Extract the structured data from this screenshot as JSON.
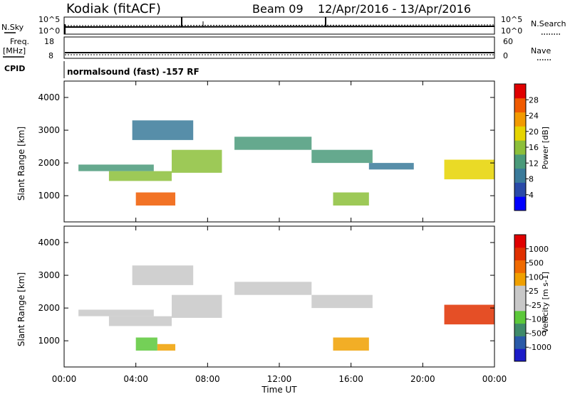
{
  "header": {
    "radar": "Kodiak (fitACF)",
    "beam": "Beam 09",
    "date_range": "12/Apr/2016 - 13/Apr/2016"
  },
  "ancillary": {
    "nsky_label": "N.Sky",
    "nsearch_label": "N.Search",
    "freq_label": "Freq.",
    "freq_unit": "[MHz]",
    "nave_label": "Nave",
    "cpid_label": "CPID",
    "cpid_value": "normalsound (fast) -157 RF",
    "noise_ticks": [
      "10^5",
      "10^0"
    ],
    "noise_ticks_right": [
      "10^5",
      "10^0"
    ],
    "freq_ticks": [
      "18",
      "8"
    ],
    "nave_ticks": [
      "60",
      "0"
    ]
  },
  "colors": {
    "power": [
      "#0000ff",
      "#2a4aa8",
      "#3a7a9a",
      "#4a9a7a",
      "#8cbf3a",
      "#e6d400",
      "#f29a00",
      "#f05a00",
      "#e00000"
    ],
    "velocity": [
      "#1c1cc8",
      "#2a5aa8",
      "#3f8a6a",
      "#5cc83a",
      "#c8c8c8",
      "#c8c8c8",
      "#f0a000",
      "#f06a00",
      "#e03000",
      "#e00000"
    ]
  },
  "chart_data": [
    {
      "type": "heatmap",
      "title": "",
      "xlabel": "Time UT",
      "ylabel": "Slant Range [km]",
      "x_ticks": [
        "00:00",
        "04:00",
        "08:00",
        "12:00",
        "16:00",
        "20:00",
        "00:00"
      ],
      "xlim": [
        0,
        24
      ],
      "y_ticks": [
        "1000",
        "2000",
        "3000",
        "4000"
      ],
      "ylim": [
        200,
        4500
      ],
      "colorbar": {
        "label": "Power [dB]",
        "ticks": [
          "28",
          "24",
          "20",
          "16",
          "12",
          "8",
          "4"
        ]
      },
      "features": [
        {
          "t_start": 0.8,
          "t_end": 5.0,
          "range_start": 1750,
          "range_end": 1950,
          "level": 3
        },
        {
          "t_start": 2.5,
          "t_end": 6.0,
          "range_start": 1450,
          "range_end": 1750,
          "level": 4
        },
        {
          "t_start": 6.0,
          "t_end": 8.8,
          "range_start": 1700,
          "range_end": 2400,
          "level": 4
        },
        {
          "t_start": 3.8,
          "t_end": 7.2,
          "range_start": 2700,
          "range_end": 3300,
          "level": 2
        },
        {
          "t_start": 4.0,
          "t_end": 6.2,
          "range_start": 700,
          "range_end": 1100,
          "level": 7
        },
        {
          "t_start": 9.5,
          "t_end": 13.8,
          "range_start": 2400,
          "range_end": 2800,
          "level": 3
        },
        {
          "t_start": 13.8,
          "t_end": 17.2,
          "range_start": 2000,
          "range_end": 2400,
          "level": 3
        },
        {
          "t_start": 17.0,
          "t_end": 19.5,
          "range_start": 1800,
          "range_end": 2000,
          "level": 2
        },
        {
          "t_start": 15.0,
          "t_end": 17.0,
          "range_start": 700,
          "range_end": 1100,
          "level": 4
        },
        {
          "t_start": 21.2,
          "t_end": 24.0,
          "range_start": 1500,
          "range_end": 2100,
          "level": 5
        }
      ]
    },
    {
      "type": "heatmap",
      "title": "",
      "xlabel": "Time UT",
      "ylabel": "Slant Range [km]",
      "x_ticks": [
        "00:00",
        "04:00",
        "08:00",
        "12:00",
        "16:00",
        "20:00",
        "00:00"
      ],
      "xlim": [
        0,
        24
      ],
      "y_ticks": [
        "1000",
        "2000",
        "3000",
        "4000"
      ],
      "ylim": [
        200,
        4500
      ],
      "colorbar": {
        "label": "Velocity [m s-1]",
        "ticks": [
          "1000",
          "500",
          "100",
          "25",
          "-25",
          "-100",
          "-500",
          "-1000"
        ]
      },
      "features": [
        {
          "t_start": 0.8,
          "t_end": 5.0,
          "range_start": 1750,
          "range_end": 1950,
          "level": 4
        },
        {
          "t_start": 2.5,
          "t_end": 6.0,
          "range_start": 1450,
          "range_end": 1750,
          "level": 4
        },
        {
          "t_start": 6.0,
          "t_end": 8.8,
          "range_start": 1700,
          "range_end": 2400,
          "level": 4
        },
        {
          "t_start": 3.8,
          "t_end": 7.2,
          "range_start": 2700,
          "range_end": 3300,
          "level": 4
        },
        {
          "t_start": 4.0,
          "t_end": 5.2,
          "range_start": 700,
          "range_end": 1100,
          "level": 3
        },
        {
          "t_start": 5.2,
          "t_end": 6.2,
          "range_start": 700,
          "range_end": 900,
          "level": 6
        },
        {
          "t_start": 9.5,
          "t_end": 13.8,
          "range_start": 2400,
          "range_end": 2800,
          "level": 4
        },
        {
          "t_start": 13.8,
          "t_end": 17.2,
          "range_start": 2000,
          "range_end": 2400,
          "level": 4
        },
        {
          "t_start": 15.0,
          "t_end": 17.0,
          "range_start": 700,
          "range_end": 1100,
          "level": 6
        },
        {
          "t_start": 21.2,
          "t_end": 24.0,
          "range_start": 1500,
          "range_end": 2100,
          "level": 8
        }
      ]
    }
  ]
}
